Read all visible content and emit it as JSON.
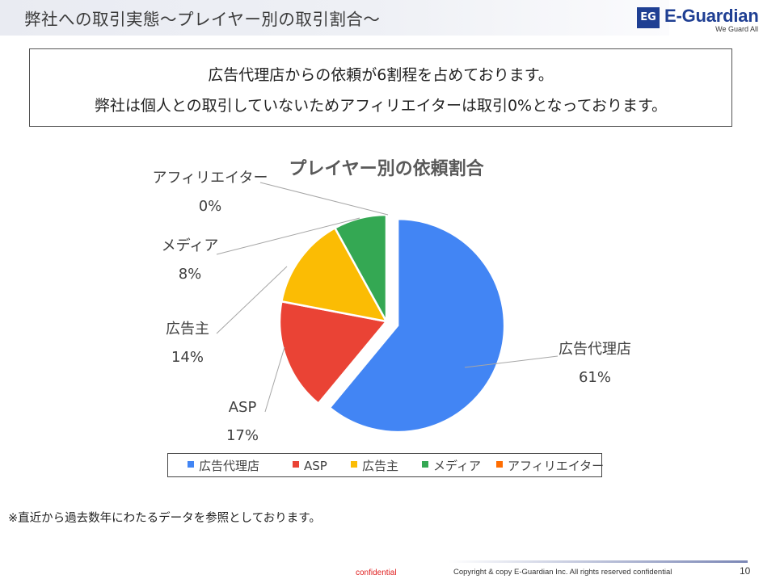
{
  "header": {
    "title": "弊社への取引実態～プレイヤー別の取引割合～"
  },
  "logo": {
    "mark": "EG",
    "name": "E-Guardian",
    "tagline": "We Guard All"
  },
  "summary": {
    "line1": "広告代理店からの依頼が6割程を占めております。",
    "line2": "弊社は個人との取引していないためアフィリエイターは取引0%となっております。"
  },
  "chart_data": {
    "type": "pie",
    "title": "プレイヤー別の依頼割合",
    "categories": [
      "広告代理店",
      "ASP",
      "広告主",
      "メディア",
      "アフィリエイター"
    ],
    "values": [
      61,
      17,
      14,
      8,
      0
    ],
    "value_labels": [
      "61%",
      "17%",
      "14%",
      "8%",
      "0%"
    ],
    "colors": [
      "#4285f4",
      "#ea4335",
      "#fbbc04",
      "#34a853",
      "#ff6d01"
    ],
    "exploded": [
      "広告代理店"
    ],
    "legend": "bottom",
    "start": "12 o'clock, clockwise"
  },
  "footnote": "※直近から過去数年にわたるデータを参照としております。",
  "footer": {
    "confidential": "confidential",
    "copyright": "Copyright & copy E-Guardian Inc.  All rights reserved  confidential",
    "page": "10"
  }
}
